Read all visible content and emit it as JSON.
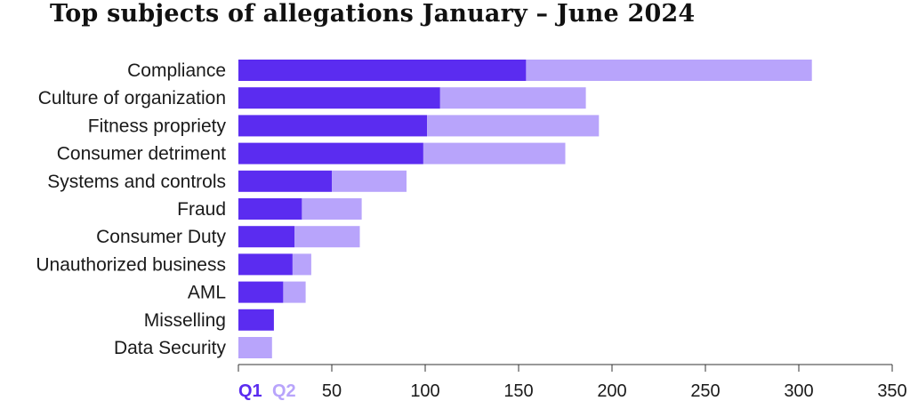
{
  "chart_data": {
    "type": "bar",
    "orientation": "horizontal",
    "stacked": true,
    "title": "Top subjects of allegations January – June 2024",
    "xlabel": "",
    "ylabel": "",
    "xlim": [
      0,
      350
    ],
    "xticks": [
      50,
      100,
      150,
      200,
      250,
      300,
      350
    ],
    "grid": false,
    "legend_position": "bottom-left",
    "categories": [
      "Compliance",
      "Culture of organization",
      "Fitness propriety",
      "Consumer detriment",
      "Systems and controls",
      "Fraud",
      "Consumer Duty",
      "Unauthorized business",
      "AML",
      "Misselling",
      "Data Security"
    ],
    "series": [
      {
        "name": "Q1",
        "color": "#5b2cf0",
        "values": [
          154,
          108,
          101,
          99,
          50,
          34,
          30,
          29,
          24,
          19,
          0
        ]
      },
      {
        "name": "Q2",
        "color": "#b8a4fb",
        "values": [
          153,
          78,
          92,
          76,
          40,
          32,
          35,
          10,
          12,
          0,
          18
        ]
      }
    ]
  }
}
